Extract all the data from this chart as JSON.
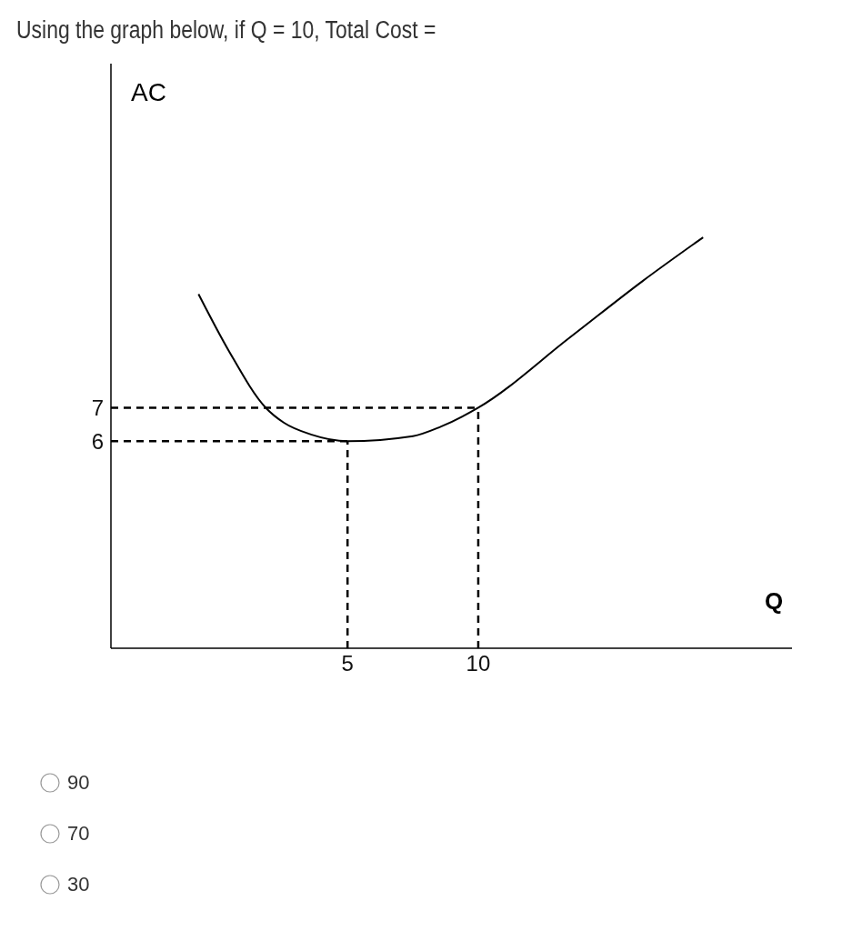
{
  "chart_data": {
    "type": "line",
    "title": "Using the graph below, if Q = 10, Total Cost =",
    "xlabel": "Q",
    "ylabel": "AC",
    "xlim": [
      -4.05,
      22
    ],
    "ylim": [
      -0.2,
      17.3
    ],
    "xticks": [
      5,
      10
    ],
    "yticks": [
      6,
      7
    ],
    "marker": "none",
    "series": [
      {
        "color": "#000000",
        "x": [
          -0.7,
          0.46,
          1.87,
          2.57,
          3.6,
          5,
          7.5,
          8.56,
          10,
          13.5,
          16.3,
          18.6
        ],
        "values": [
          10.4,
          8.7,
          7,
          6.55,
          6.2,
          6,
          6.15,
          6.43,
          7,
          9.1,
          10.8,
          12.1
        ],
        "line_style": "solid"
      },
      {
        "color": "#000000",
        "x": [
          -4.05,
          10
        ],
        "values": [
          7,
          7
        ],
        "line_style": "dashed"
      },
      {
        "color": "#000000",
        "x": [
          -4.05,
          5
        ],
        "values": [
          6,
          6
        ],
        "line_style": "dashed"
      },
      {
        "color": "#000000",
        "x": [
          5,
          5
        ],
        "values": [
          -0.2,
          6
        ],
        "line_style": "dashed"
      },
      {
        "color": "#000000",
        "x": [
          10,
          10
        ],
        "values": [
          -0.2,
          7
        ],
        "line_style": "dashed"
      }
    ],
    "annotations": [
      "90",
      "70",
      "30"
    ]
  }
}
